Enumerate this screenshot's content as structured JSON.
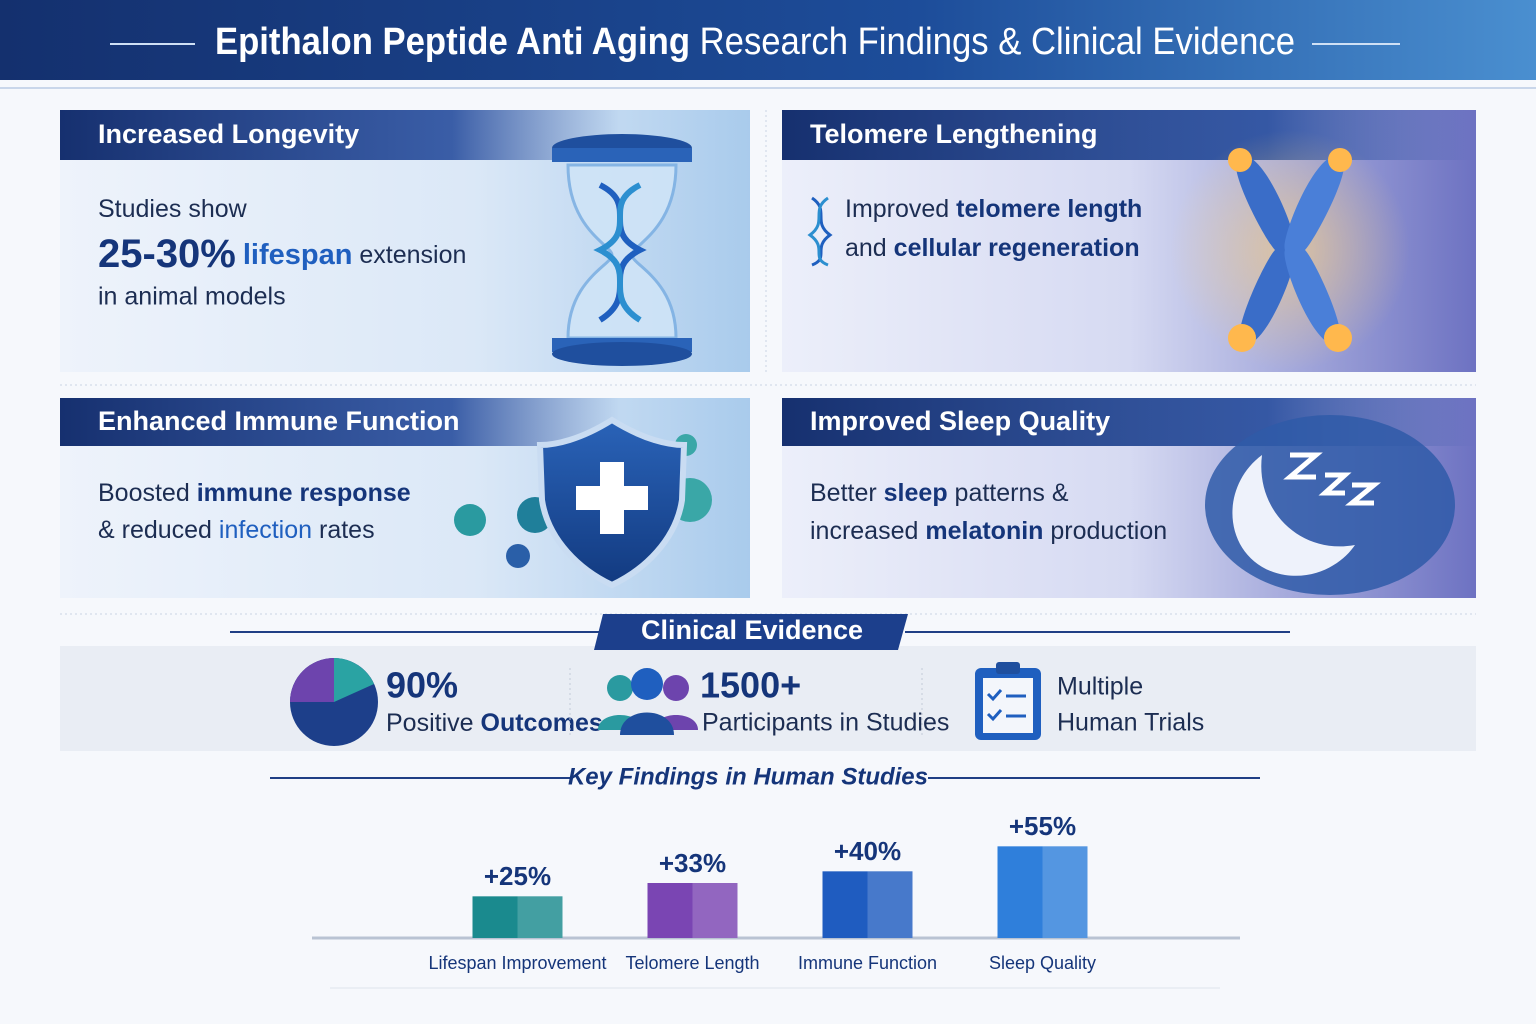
{
  "header": {
    "title_bold": "Epithalon Peptide Anti Aging",
    "title_rest": "Research Findings & Clinical Evidence"
  },
  "cards": [
    {
      "title": "Increased Longevity",
      "lines": [
        [
          "Studies show"
        ],
        [
          "25-30%",
          "lifespan",
          "extension"
        ],
        [
          "in animal models"
        ]
      ]
    },
    {
      "title": "Telomere Lengthening",
      "lines": [
        [
          "Improved",
          "telomere length"
        ],
        [
          "and",
          "cellular regeneration"
        ]
      ]
    },
    {
      "title": "Enhanced Immune Function",
      "lines": [
        [
          "Boosted",
          "immune response"
        ],
        [
          "& reduced",
          "infection",
          "rates"
        ]
      ]
    },
    {
      "title": "Improved Sleep Quality",
      "lines": [
        [
          "Better",
          "sleep",
          "patterns &"
        ],
        [
          "increased",
          "melatonin",
          "production"
        ]
      ]
    }
  ],
  "clinical": {
    "title": "Clinical Evidence",
    "stats": [
      {
        "figure": "90%",
        "caption": [
          "Positive",
          "Outcomes"
        ]
      },
      {
        "figure": "1500+",
        "caption": [
          "Participants in Studies"
        ]
      },
      {
        "figure": "Multiple",
        "caption": [
          "Human Trials"
        ]
      }
    ]
  },
  "chart_data": {
    "type": "bar",
    "title": "Key Findings in Human Studies",
    "categories": [
      "Lifespan Improvement",
      "Telomere Length",
      "Immune Function",
      "Sleep Quality"
    ],
    "values": [
      25,
      33,
      40,
      55
    ],
    "value_labels": [
      "+25%",
      "+33%",
      "+40%",
      "+55%"
    ],
    "colors": [
      "#1a8a8e",
      "#7a45b3",
      "#1f5cc0",
      "#2f7fdb"
    ],
    "ylim": [
      0,
      60
    ]
  }
}
